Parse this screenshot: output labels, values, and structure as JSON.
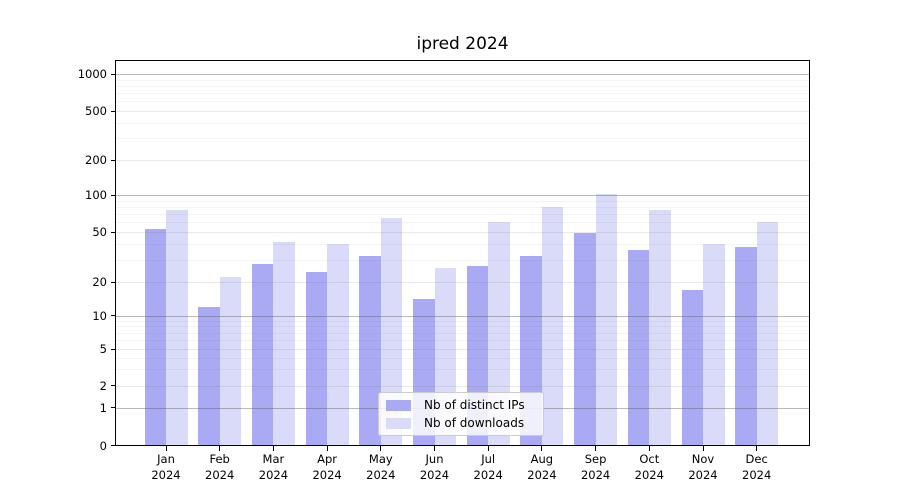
{
  "chart_data": {
    "type": "bar",
    "title": "ipred 2024",
    "x_tick_months": [
      "Jan",
      "Feb",
      "Mar",
      "Apr",
      "May",
      "Jun",
      "Jul",
      "Aug",
      "Sep",
      "Oct",
      "Nov",
      "Dec"
    ],
    "x_tick_year": "2024",
    "series": [
      {
        "name": "Nb of distinct IPs",
        "color": "#a9a9f4",
        "values": [
          53,
          12,
          28,
          24,
          32,
          14,
          27,
          32,
          49,
          36,
          17,
          38
        ]
      },
      {
        "name": "Nb of downloads",
        "color": "#dadaf9",
        "values": [
          75,
          22,
          42,
          40,
          65,
          26,
          60,
          80,
          101,
          76,
          40,
          60
        ]
      }
    ],
    "y_ticks": [
      0,
      1,
      2,
      5,
      10,
      20,
      50,
      100,
      200,
      500,
      1000
    ],
    "yscale": "symlog",
    "ylim": [
      0,
      1200
    ],
    "grid": true,
    "legend_position": "lower center"
  }
}
